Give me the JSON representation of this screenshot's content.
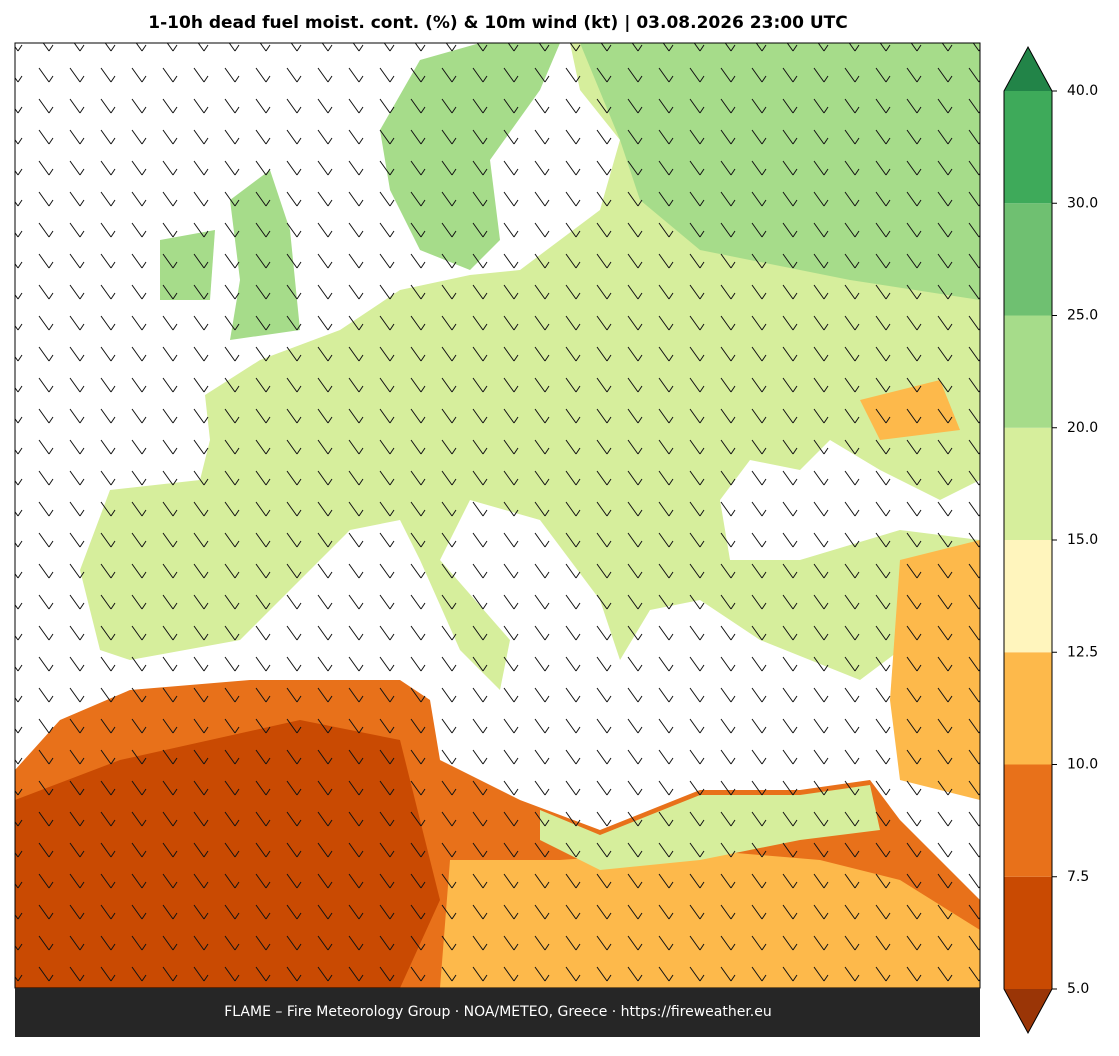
{
  "header": {
    "title": "1-10h dead fuel moist. cont. (%) & 10m wind (kt)  |  03.08.2026 23:00 UTC"
  },
  "footer": {
    "text": "FLAME – Fire Meteorology Group · NOA/METEO, Greece · https://fireweather.eu"
  },
  "colorbar": {
    "ticks": [
      {
        "value": 5,
        "label": "5.0"
      },
      {
        "value": 7.5,
        "label": "7.5"
      },
      {
        "value": 10,
        "label": "10.0"
      },
      {
        "value": 12.5,
        "label": "12.5"
      },
      {
        "value": 15,
        "label": "15.0"
      },
      {
        "value": 20,
        "label": "20.0"
      },
      {
        "value": 25,
        "label": "25.0"
      },
      {
        "value": 30,
        "label": "30.0"
      },
      {
        "value": 40,
        "label": "40.0"
      }
    ],
    "colors": [
      "#c94a02",
      "#e8711a",
      "#fdb94b",
      "#fff5bd",
      "#d6ee9c",
      "#a6dc8a",
      "#6fc071",
      "#3eaa5a"
    ],
    "under_color": "#9a3506",
    "over_color": "#228448"
  }
}
